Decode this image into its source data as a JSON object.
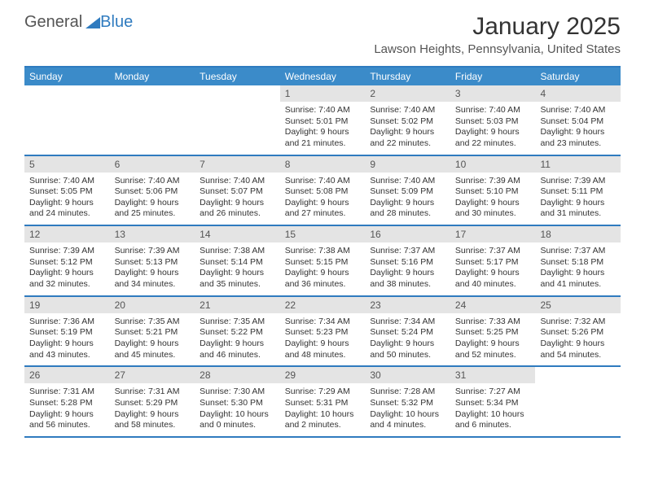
{
  "logo": {
    "general": "General",
    "blue": "Blue"
  },
  "title": "January 2025",
  "location": "Lawson Heights, Pennsylvania, United States",
  "day_headers": [
    "Sunday",
    "Monday",
    "Tuesday",
    "Wednesday",
    "Thursday",
    "Friday",
    "Saturday"
  ],
  "colors": {
    "brand_blue": "#3b8bc9",
    "border_blue": "#2f7bbf",
    "daynum_bg": "#e4e4e4",
    "text": "#333333",
    "muted": "#555555",
    "white": "#ffffff"
  },
  "weeks": [
    [
      {
        "num": "",
        "sunrise": "",
        "sunset": "",
        "daylight1": "",
        "daylight2": ""
      },
      {
        "num": "",
        "sunrise": "",
        "sunset": "",
        "daylight1": "",
        "daylight2": ""
      },
      {
        "num": "",
        "sunrise": "",
        "sunset": "",
        "daylight1": "",
        "daylight2": ""
      },
      {
        "num": "1",
        "sunrise": "Sunrise: 7:40 AM",
        "sunset": "Sunset: 5:01 PM",
        "daylight1": "Daylight: 9 hours",
        "daylight2": "and 21 minutes."
      },
      {
        "num": "2",
        "sunrise": "Sunrise: 7:40 AM",
        "sunset": "Sunset: 5:02 PM",
        "daylight1": "Daylight: 9 hours",
        "daylight2": "and 22 minutes."
      },
      {
        "num": "3",
        "sunrise": "Sunrise: 7:40 AM",
        "sunset": "Sunset: 5:03 PM",
        "daylight1": "Daylight: 9 hours",
        "daylight2": "and 22 minutes."
      },
      {
        "num": "4",
        "sunrise": "Sunrise: 7:40 AM",
        "sunset": "Sunset: 5:04 PM",
        "daylight1": "Daylight: 9 hours",
        "daylight2": "and 23 minutes."
      }
    ],
    [
      {
        "num": "5",
        "sunrise": "Sunrise: 7:40 AM",
        "sunset": "Sunset: 5:05 PM",
        "daylight1": "Daylight: 9 hours",
        "daylight2": "and 24 minutes."
      },
      {
        "num": "6",
        "sunrise": "Sunrise: 7:40 AM",
        "sunset": "Sunset: 5:06 PM",
        "daylight1": "Daylight: 9 hours",
        "daylight2": "and 25 minutes."
      },
      {
        "num": "7",
        "sunrise": "Sunrise: 7:40 AM",
        "sunset": "Sunset: 5:07 PM",
        "daylight1": "Daylight: 9 hours",
        "daylight2": "and 26 minutes."
      },
      {
        "num": "8",
        "sunrise": "Sunrise: 7:40 AM",
        "sunset": "Sunset: 5:08 PM",
        "daylight1": "Daylight: 9 hours",
        "daylight2": "and 27 minutes."
      },
      {
        "num": "9",
        "sunrise": "Sunrise: 7:40 AM",
        "sunset": "Sunset: 5:09 PM",
        "daylight1": "Daylight: 9 hours",
        "daylight2": "and 28 minutes."
      },
      {
        "num": "10",
        "sunrise": "Sunrise: 7:39 AM",
        "sunset": "Sunset: 5:10 PM",
        "daylight1": "Daylight: 9 hours",
        "daylight2": "and 30 minutes."
      },
      {
        "num": "11",
        "sunrise": "Sunrise: 7:39 AM",
        "sunset": "Sunset: 5:11 PM",
        "daylight1": "Daylight: 9 hours",
        "daylight2": "and 31 minutes."
      }
    ],
    [
      {
        "num": "12",
        "sunrise": "Sunrise: 7:39 AM",
        "sunset": "Sunset: 5:12 PM",
        "daylight1": "Daylight: 9 hours",
        "daylight2": "and 32 minutes."
      },
      {
        "num": "13",
        "sunrise": "Sunrise: 7:39 AM",
        "sunset": "Sunset: 5:13 PM",
        "daylight1": "Daylight: 9 hours",
        "daylight2": "and 34 minutes."
      },
      {
        "num": "14",
        "sunrise": "Sunrise: 7:38 AM",
        "sunset": "Sunset: 5:14 PM",
        "daylight1": "Daylight: 9 hours",
        "daylight2": "and 35 minutes."
      },
      {
        "num": "15",
        "sunrise": "Sunrise: 7:38 AM",
        "sunset": "Sunset: 5:15 PM",
        "daylight1": "Daylight: 9 hours",
        "daylight2": "and 36 minutes."
      },
      {
        "num": "16",
        "sunrise": "Sunrise: 7:37 AM",
        "sunset": "Sunset: 5:16 PM",
        "daylight1": "Daylight: 9 hours",
        "daylight2": "and 38 minutes."
      },
      {
        "num": "17",
        "sunrise": "Sunrise: 7:37 AM",
        "sunset": "Sunset: 5:17 PM",
        "daylight1": "Daylight: 9 hours",
        "daylight2": "and 40 minutes."
      },
      {
        "num": "18",
        "sunrise": "Sunrise: 7:37 AM",
        "sunset": "Sunset: 5:18 PM",
        "daylight1": "Daylight: 9 hours",
        "daylight2": "and 41 minutes."
      }
    ],
    [
      {
        "num": "19",
        "sunrise": "Sunrise: 7:36 AM",
        "sunset": "Sunset: 5:19 PM",
        "daylight1": "Daylight: 9 hours",
        "daylight2": "and 43 minutes."
      },
      {
        "num": "20",
        "sunrise": "Sunrise: 7:35 AM",
        "sunset": "Sunset: 5:21 PM",
        "daylight1": "Daylight: 9 hours",
        "daylight2": "and 45 minutes."
      },
      {
        "num": "21",
        "sunrise": "Sunrise: 7:35 AM",
        "sunset": "Sunset: 5:22 PM",
        "daylight1": "Daylight: 9 hours",
        "daylight2": "and 46 minutes."
      },
      {
        "num": "22",
        "sunrise": "Sunrise: 7:34 AM",
        "sunset": "Sunset: 5:23 PM",
        "daylight1": "Daylight: 9 hours",
        "daylight2": "and 48 minutes."
      },
      {
        "num": "23",
        "sunrise": "Sunrise: 7:34 AM",
        "sunset": "Sunset: 5:24 PM",
        "daylight1": "Daylight: 9 hours",
        "daylight2": "and 50 minutes."
      },
      {
        "num": "24",
        "sunrise": "Sunrise: 7:33 AM",
        "sunset": "Sunset: 5:25 PM",
        "daylight1": "Daylight: 9 hours",
        "daylight2": "and 52 minutes."
      },
      {
        "num": "25",
        "sunrise": "Sunrise: 7:32 AM",
        "sunset": "Sunset: 5:26 PM",
        "daylight1": "Daylight: 9 hours",
        "daylight2": "and 54 minutes."
      }
    ],
    [
      {
        "num": "26",
        "sunrise": "Sunrise: 7:31 AM",
        "sunset": "Sunset: 5:28 PM",
        "daylight1": "Daylight: 9 hours",
        "daylight2": "and 56 minutes."
      },
      {
        "num": "27",
        "sunrise": "Sunrise: 7:31 AM",
        "sunset": "Sunset: 5:29 PM",
        "daylight1": "Daylight: 9 hours",
        "daylight2": "and 58 minutes."
      },
      {
        "num": "28",
        "sunrise": "Sunrise: 7:30 AM",
        "sunset": "Sunset: 5:30 PM",
        "daylight1": "Daylight: 10 hours",
        "daylight2": "and 0 minutes."
      },
      {
        "num": "29",
        "sunrise": "Sunrise: 7:29 AM",
        "sunset": "Sunset: 5:31 PM",
        "daylight1": "Daylight: 10 hours",
        "daylight2": "and 2 minutes."
      },
      {
        "num": "30",
        "sunrise": "Sunrise: 7:28 AM",
        "sunset": "Sunset: 5:32 PM",
        "daylight1": "Daylight: 10 hours",
        "daylight2": "and 4 minutes."
      },
      {
        "num": "31",
        "sunrise": "Sunrise: 7:27 AM",
        "sunset": "Sunset: 5:34 PM",
        "daylight1": "Daylight: 10 hours",
        "daylight2": "and 6 minutes."
      },
      {
        "num": "",
        "sunrise": "",
        "sunset": "",
        "daylight1": "",
        "daylight2": ""
      }
    ]
  ]
}
